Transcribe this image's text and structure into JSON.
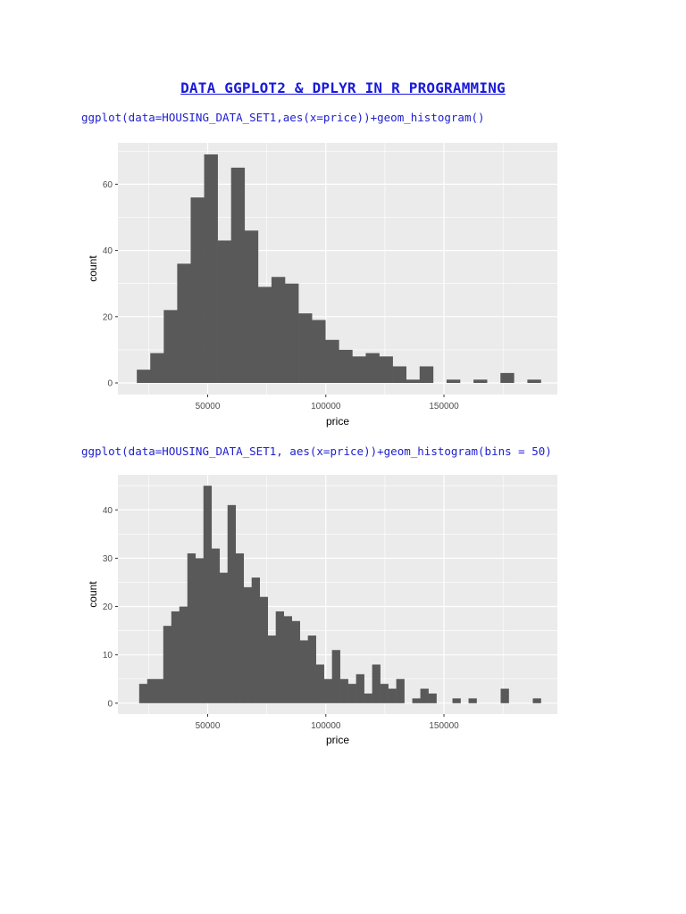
{
  "document": {
    "title": "DATA GGPLOT2 & DPLYR IN R PROGRAMMING",
    "code_1": "ggplot(data=HOUSING_DATA_SET1,aes(x=price))+geom_histogram()",
    "code_2": "ggplot(data=HOUSING_DATA_SET1, aes(x=price))+geom_histogram(bins = 50)"
  },
  "colors": {
    "panel_background": "#ebebeb",
    "grid_major": "#ffffff",
    "bar_fill": "#595959",
    "tick_text": "#4d4d4d",
    "axis_title": "#000000",
    "code_text": "#2020d0",
    "title_text": "#1a1adb"
  },
  "chart_data": [
    {
      "type": "bar",
      "subtype": "histogram",
      "title": "",
      "xlabel": "price",
      "ylabel": "count",
      "xlim": [
        12000,
        198000
      ],
      "ylim": [
        -3.5,
        72.5
      ],
      "x_ticks": [
        50000,
        100000,
        150000
      ],
      "x_tick_labels": [
        "50000",
        "100000",
        "150000"
      ],
      "y_ticks": [
        0,
        20,
        40,
        60
      ],
      "y_tick_labels": [
        "0",
        "20",
        "40",
        "60"
      ],
      "grid": true,
      "bins": [
        {
          "x0": 20000,
          "x1": 25700,
          "count": 4
        },
        {
          "x0": 25700,
          "x1": 31400,
          "count": 9
        },
        {
          "x0": 31400,
          "x1": 37100,
          "count": 22
        },
        {
          "x0": 37100,
          "x1": 42800,
          "count": 36
        },
        {
          "x0": 42800,
          "x1": 48500,
          "count": 56
        },
        {
          "x0": 48500,
          "x1": 54200,
          "count": 69
        },
        {
          "x0": 54200,
          "x1": 59900,
          "count": 43
        },
        {
          "x0": 59900,
          "x1": 65600,
          "count": 65
        },
        {
          "x0": 65600,
          "x1": 71300,
          "count": 46
        },
        {
          "x0": 71300,
          "x1": 77000,
          "count": 29
        },
        {
          "x0": 77000,
          "x1": 82700,
          "count": 32
        },
        {
          "x0": 82700,
          "x1": 88400,
          "count": 30
        },
        {
          "x0": 88400,
          "x1": 94100,
          "count": 21
        },
        {
          "x0": 94100,
          "x1": 99800,
          "count": 19
        },
        {
          "x0": 99800,
          "x1": 105500,
          "count": 13
        },
        {
          "x0": 105500,
          "x1": 111200,
          "count": 10
        },
        {
          "x0": 111200,
          "x1": 116900,
          "count": 8
        },
        {
          "x0": 116900,
          "x1": 122600,
          "count": 9
        },
        {
          "x0": 122600,
          "x1": 128300,
          "count": 8
        },
        {
          "x0": 128300,
          "x1": 134000,
          "count": 5
        },
        {
          "x0": 134000,
          "x1": 139700,
          "count": 1
        },
        {
          "x0": 139700,
          "x1": 145400,
          "count": 5
        },
        {
          "x0": 151100,
          "x1": 156800,
          "count": 1
        },
        {
          "x0": 162500,
          "x1": 168200,
          "count": 1
        },
        {
          "x0": 173900,
          "x1": 179600,
          "count": 3
        },
        {
          "x0": 185300,
          "x1": 191000,
          "count": 1
        }
      ]
    },
    {
      "type": "bar",
      "subtype": "histogram",
      "title": "",
      "xlabel": "price",
      "ylabel": "count",
      "xlim": [
        12000,
        198000
      ],
      "ylim": [
        -2.25,
        47.25
      ],
      "x_ticks": [
        50000,
        100000,
        150000
      ],
      "x_tick_labels": [
        "50000",
        "100000",
        "150000"
      ],
      "y_ticks": [
        0,
        10,
        20,
        30,
        40
      ],
      "y_tick_labels": [
        "0",
        "10",
        "20",
        "30",
        "40"
      ],
      "grid": true,
      "bins": [
        {
          "x0": 21000,
          "x1": 24400,
          "count": 4
        },
        {
          "x0": 24400,
          "x1": 27800,
          "count": 5
        },
        {
          "x0": 27800,
          "x1": 31200,
          "count": 5
        },
        {
          "x0": 31200,
          "x1": 34600,
          "count": 16
        },
        {
          "x0": 34600,
          "x1": 38000,
          "count": 19
        },
        {
          "x0": 38000,
          "x1": 41400,
          "count": 20
        },
        {
          "x0": 41400,
          "x1": 44800,
          "count": 31
        },
        {
          "x0": 44800,
          "x1": 48200,
          "count": 30
        },
        {
          "x0": 48200,
          "x1": 51600,
          "count": 45
        },
        {
          "x0": 51600,
          "x1": 55000,
          "count": 32
        },
        {
          "x0": 55000,
          "x1": 58400,
          "count": 27
        },
        {
          "x0": 58400,
          "x1": 61800,
          "count": 41
        },
        {
          "x0": 61800,
          "x1": 65200,
          "count": 31
        },
        {
          "x0": 65200,
          "x1": 68600,
          "count": 24
        },
        {
          "x0": 68600,
          "x1": 72000,
          "count": 26
        },
        {
          "x0": 72000,
          "x1": 75400,
          "count": 22
        },
        {
          "x0": 75400,
          "x1": 78800,
          "count": 14
        },
        {
          "x0": 78800,
          "x1": 82200,
          "count": 19
        },
        {
          "x0": 82200,
          "x1": 85600,
          "count": 18
        },
        {
          "x0": 85600,
          "x1": 89000,
          "count": 17
        },
        {
          "x0": 89000,
          "x1": 92400,
          "count": 13
        },
        {
          "x0": 92400,
          "x1": 95800,
          "count": 14
        },
        {
          "x0": 95800,
          "x1": 99200,
          "count": 8
        },
        {
          "x0": 99200,
          "x1": 102600,
          "count": 5
        },
        {
          "x0": 102600,
          "x1": 106000,
          "count": 11
        },
        {
          "x0": 106000,
          "x1": 109400,
          "count": 5
        },
        {
          "x0": 109400,
          "x1": 112800,
          "count": 4
        },
        {
          "x0": 112800,
          "x1": 116200,
          "count": 6
        },
        {
          "x0": 116200,
          "x1": 119600,
          "count": 2
        },
        {
          "x0": 119600,
          "x1": 123000,
          "count": 8
        },
        {
          "x0": 123000,
          "x1": 126400,
          "count": 4
        },
        {
          "x0": 126400,
          "x1": 129800,
          "count": 3
        },
        {
          "x0": 129800,
          "x1": 133200,
          "count": 5
        },
        {
          "x0": 136600,
          "x1": 140000,
          "count": 1
        },
        {
          "x0": 140000,
          "x1": 143400,
          "count": 3
        },
        {
          "x0": 143400,
          "x1": 146800,
          "count": 2
        },
        {
          "x0": 153600,
          "x1": 157000,
          "count": 1
        },
        {
          "x0": 160400,
          "x1": 163800,
          "count": 1
        },
        {
          "x0": 174000,
          "x1": 177400,
          "count": 3
        },
        {
          "x0": 187600,
          "x1": 191000,
          "count": 1
        }
      ]
    }
  ]
}
